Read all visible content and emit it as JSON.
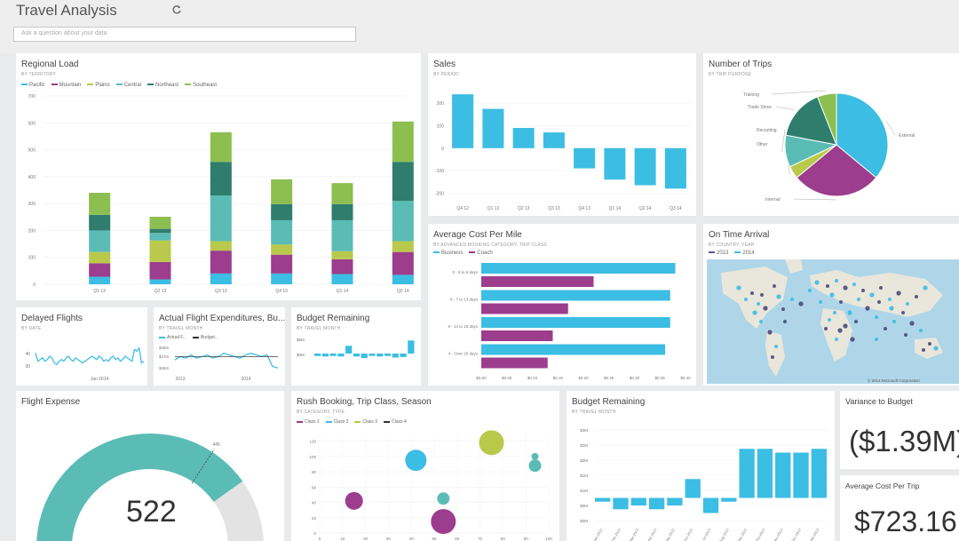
{
  "app": {
    "title": "Travel Analysis",
    "qa_placeholder": "Ask a question about your data",
    "refresh_icon": "refresh-icon"
  },
  "colors": {
    "cyan": "#3cbde3",
    "purple": "#9c3d8d",
    "teal_dark": "#2f7d6d",
    "teal": "#5bbcb6",
    "lime": "#b9c94b",
    "green": "#8cbf50",
    "gray": "#e3e3e3",
    "tile_bg": "#ffffff"
  },
  "tiles": {
    "regional": {
      "title": "Regional Load",
      "subtitle": "BY TERRITORY",
      "legend": [
        "Pacific",
        "Mountain",
        "Plains",
        "Central",
        "Northeast",
        "Southeast"
      ]
    },
    "sales": {
      "title": "Sales",
      "subtitle": "BY PERIOD"
    },
    "trips": {
      "title": "Number of Trips",
      "subtitle": "BY TRIP PURPOSE"
    },
    "cost": {
      "title": "Average Cost Per Mile",
      "subtitle": "BY ADVANCED BOOKING CATEGORY, TRIP CLASS",
      "legend": [
        "Business",
        "Coach"
      ]
    },
    "ontime": {
      "title": "On Time Arrival",
      "subtitle": "BY COUNTRY, YEAR",
      "legend": [
        "2013",
        "2014"
      ],
      "copyright": "© 2014 Microsoft Corporation"
    },
    "delayed": {
      "title": "Delayed Flights",
      "subtitle": "BY DATE"
    },
    "actual": {
      "title": "Actual Flight Expenditures, Bu...",
      "subtitle": "BY TRAVEL MONTH",
      "legend": [
        "Actual F...",
        "Budget..."
      ]
    },
    "budget_small": {
      "title": "Budget Remaining",
      "subtitle": "BY TRAVEL MONTH"
    },
    "flight_expense": {
      "title": "Flight Expense",
      "value": "522"
    },
    "rush": {
      "title": "Rush Booking, Trip Class, Season",
      "subtitle": "BY CATEGORY, TYPE",
      "legend": [
        "Class 1",
        "Class 2",
        "Class 3",
        "Class 4"
      ]
    },
    "budget_large": {
      "title": "Budget Remaining",
      "subtitle": "BY TRAVEL MONTH"
    },
    "variance": {
      "title": "Variance to Budget",
      "value": "($1.39M)"
    },
    "avg_cost_trip": {
      "title": "Average Cost Per Trip",
      "value": "$723.16"
    }
  },
  "chart_data": [
    {
      "id": "regional",
      "type": "bar",
      "categories": [
        "Q1 13",
        "Q2 13",
        "Q3 13",
        "Q4 13",
        "Q1 14",
        "Q2 14"
      ],
      "yticks": [
        0,
        100,
        200,
        300,
        400,
        500,
        600,
        700
      ],
      "ylim": [
        0,
        700
      ],
      "series": [
        {
          "name": "Pacific",
          "values": [
            28,
            18,
            40,
            40,
            38,
            35
          ]
        },
        {
          "name": "Mountain",
          "values": [
            50,
            65,
            85,
            70,
            55,
            85
          ]
        },
        {
          "name": "Plains",
          "values": [
            42,
            80,
            35,
            38,
            30,
            40
          ]
        },
        {
          "name": "Central",
          "values": [
            80,
            28,
            170,
            90,
            115,
            150
          ]
        },
        {
          "name": "Northeast",
          "values": [
            58,
            15,
            125,
            60,
            60,
            145
          ]
        },
        {
          "name": "Southeast",
          "values": [
            82,
            45,
            110,
            92,
            78,
            150
          ]
        }
      ]
    },
    {
      "id": "sales",
      "type": "bar",
      "categories": [
        "Q4 12",
        "Q1 13",
        "Q2 13",
        "Q3 13",
        "Q4 13",
        "Q1 14",
        "Q2 14",
        "Q3 14"
      ],
      "values": [
        240,
        175,
        90,
        70,
        -90,
        -140,
        -165,
        -180
      ],
      "yticks": [
        200,
        100,
        0,
        -100,
        -200
      ],
      "ylim": [
        -250,
        280
      ]
    },
    {
      "id": "trips",
      "type": "pie",
      "labels": [
        "External",
        "Internal",
        "Other",
        "Recruiting",
        "Trade Show",
        "Training"
      ],
      "values": [
        36,
        28,
        4,
        10,
        16,
        6
      ],
      "colors": [
        "#3cbde3",
        "#9c3d8d",
        "#b9c94b",
        "#5bbcb6",
        "#2f7d6d",
        "#8cbf50"
      ]
    },
    {
      "id": "cost",
      "type": "bar",
      "categories": [
        "0 - 5 to 6 days",
        "6 - 7 to 13 days",
        "9 - 14 to 18 days",
        "4 - Over 20 days"
      ],
      "xticks": [
        "$0.00",
        "$0.05",
        "$0.10",
        "$0.15",
        "$0.20",
        "$0.25",
        "$0.30",
        "$0.35",
        "$0.40"
      ],
      "xlim": [
        0,
        0.4
      ],
      "series": [
        {
          "name": "Business",
          "values": [
            0.38,
            0.37,
            0.37,
            0.36
          ]
        },
        {
          "name": "Coach",
          "values": [
            0.22,
            0.17,
            0.14,
            0.13
          ]
        }
      ]
    },
    {
      "id": "delayed",
      "type": "line",
      "xticks": [
        "Jan 2014"
      ],
      "yticks": [
        "40",
        "30"
      ],
      "values": [
        38,
        33,
        34,
        35,
        33,
        34,
        36,
        35,
        32,
        31,
        33,
        34,
        33,
        35,
        36,
        34,
        33,
        35,
        34,
        33,
        32,
        33,
        34,
        35,
        36,
        35,
        34,
        36,
        35,
        33,
        34,
        33,
        35,
        36,
        34,
        35,
        33,
        34,
        36,
        35,
        34,
        33,
        40,
        39,
        41,
        32,
        33
      ]
    },
    {
      "id": "actual",
      "type": "line",
      "xticks": [
        "2013",
        "2014"
      ],
      "yticks": [
        "$46m",
        "$47m",
        "$45m"
      ],
      "series": [
        {
          "name": "Actual F...",
          "values": [
            46,
            46.2,
            46.1,
            46.3,
            46.1,
            46.2,
            46.3,
            46.1,
            46.2,
            46.4,
            46.3,
            46.2,
            46.1,
            46.3,
            46.4,
            46.3,
            46.2,
            46.3,
            45.6,
            45.5
          ]
        },
        {
          "name": "Budget...",
          "values": [
            46.2,
            46.2,
            46.2,
            46.2,
            46.2,
            46.2,
            46.2,
            46.2,
            46.2,
            46.2,
            46.2,
            46.2,
            46.2,
            46.2,
            46.2,
            46.2,
            46.2,
            46.2,
            46.2,
            46.2
          ]
        }
      ]
    },
    {
      "id": "budget_small",
      "type": "bar",
      "yticks": [
        "$5M",
        "$0M"
      ],
      "values": [
        -0.2,
        -0.3,
        -0.2,
        -0.3,
        1.2,
        -0.3,
        -0.6,
        -0.2,
        -0.3,
        -0.2,
        -0.5,
        -0.4,
        2.2
      ]
    },
    {
      "id": "flight_expense",
      "type": "area",
      "values": [
        522
      ],
      "xlim": [
        0,
        650
      ],
      "target": 445
    },
    {
      "id": "rush",
      "type": "scatter",
      "yticks": [
        0,
        20,
        40,
        60,
        80,
        100,
        120
      ],
      "xticks": [
        0,
        10,
        20,
        30,
        40,
        50,
        60,
        70,
        80,
        90,
        100
      ],
      "ylim": [
        0,
        130
      ],
      "xlim": [
        0,
        100
      ],
      "points": [
        {
          "x": 42,
          "y": 95,
          "r": 12,
          "series": "Class 2"
        },
        {
          "x": 75,
          "y": 118,
          "r": 14,
          "series": "Class 3"
        },
        {
          "x": 15,
          "y": 42,
          "r": 10,
          "series": "Class 1"
        },
        {
          "x": 54,
          "y": 45,
          "r": 7,
          "series": "Class 2"
        },
        {
          "x": 54,
          "y": 15,
          "r": 14,
          "series": "Class 1"
        },
        {
          "x": 94,
          "y": 100,
          "r": 4,
          "series": "Class 2"
        },
        {
          "x": 94,
          "y": 88,
          "r": 7,
          "series": "Class 2"
        }
      ]
    },
    {
      "id": "budget_large",
      "type": "bar",
      "yticks": [
        "$3M",
        "$2M",
        "$2M",
        "$1M",
        "$1M",
        "$0M",
        "$0M"
      ],
      "categories": [
        "Jan 2013",
        "Feb 2013",
        "Mar 2013",
        "Apr 2013",
        "May 2013",
        "Jun 2013",
        "Jul 2013",
        "Aug 2013",
        "Sep 2013",
        "Oct 2013",
        "Nov 2013",
        "Dec 2013",
        "Jan 2014"
      ],
      "values": [
        -0.1,
        -0.3,
        -0.2,
        -0.3,
        -0.2,
        0.5,
        -0.4,
        -0.1,
        1.3,
        1.3,
        1.2,
        1.2,
        1.3
      ],
      "ylim": [
        -0.6,
        1.8
      ]
    }
  ]
}
